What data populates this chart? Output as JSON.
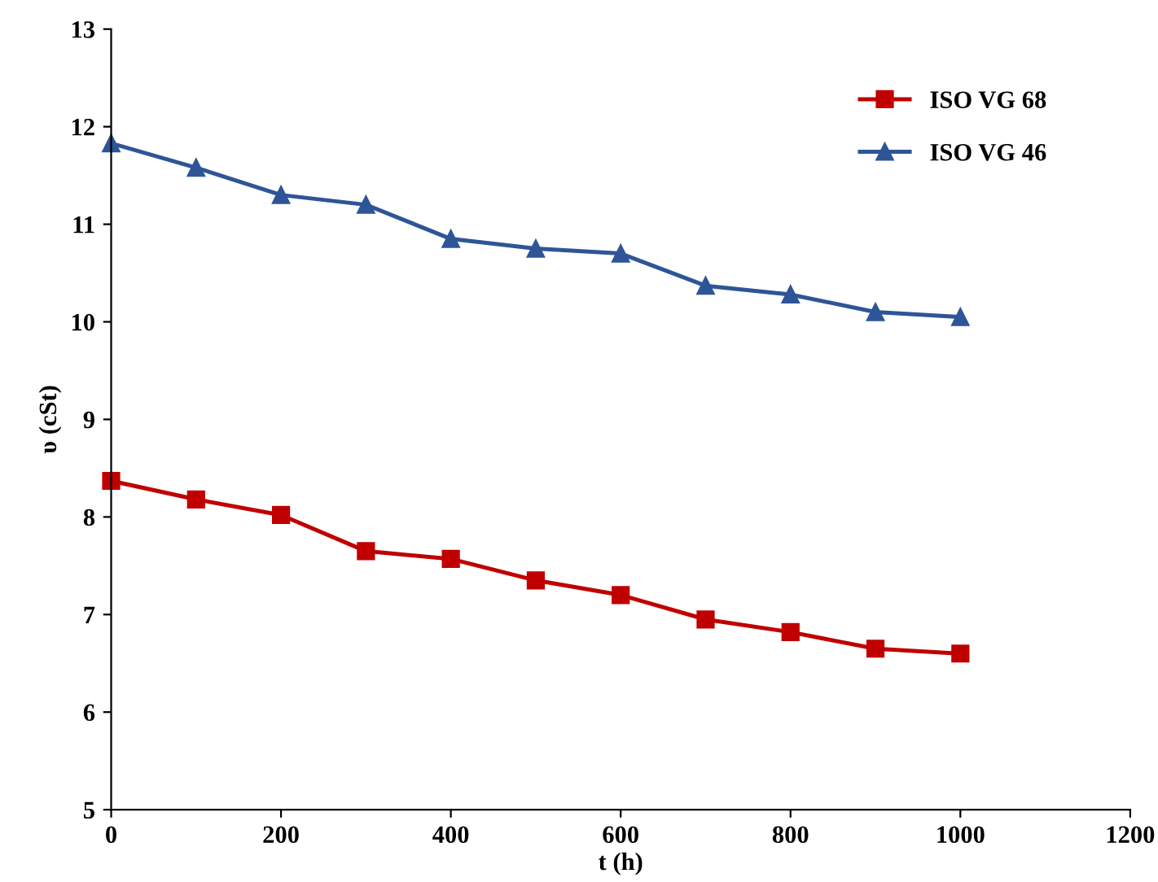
{
  "chart_data": {
    "type": "line",
    "xlabel": "t (h)",
    "ylabel": "υ (cSt)",
    "x": [
      0,
      100,
      200,
      300,
      400,
      500,
      600,
      700,
      800,
      900,
      1000
    ],
    "series": [
      {
        "name": "ISO VG 68",
        "color": "#c00000",
        "marker": "square",
        "values": [
          8.37,
          8.18,
          8.02,
          7.65,
          7.57,
          7.35,
          7.2,
          6.95,
          6.82,
          6.65,
          6.6
        ]
      },
      {
        "name": "ISO VG 46",
        "color": "#2e5597",
        "marker": "triangle",
        "values": [
          11.83,
          11.58,
          11.3,
          11.2,
          10.85,
          10.75,
          10.7,
          10.37,
          10.28,
          10.1,
          10.05
        ]
      }
    ],
    "xlim": [
      0,
      1200
    ],
    "xticks": [
      0,
      200,
      400,
      600,
      800,
      1000,
      1200
    ],
    "ylim": [
      5,
      13
    ],
    "yticks": [
      5,
      6,
      7,
      8,
      9,
      10,
      11,
      12,
      13
    ],
    "grid": false,
    "legend": "top right",
    "line_style": "solid"
  }
}
